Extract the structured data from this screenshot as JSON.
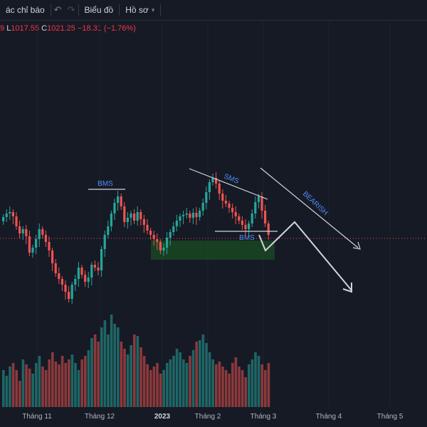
{
  "toolbar": {
    "indicators_label": "ác chỉ báo",
    "undo_icon": "undo-icon",
    "redo_icon": "redo-icon",
    "chart_label": "Biểu đồ",
    "profile_label": "Hồ sơ",
    "profile_icon": "chevron-down-icon"
  },
  "ohlc": {
    "open_tail": "9",
    "low_label": "L",
    "low_value": "1017.55",
    "close_label": "C",
    "close_value": "1021.25",
    "change": "−18.31 (−1.76%)"
  },
  "annotations": {
    "bms_left": "BMS",
    "sms": "SMS",
    "bms_right": "BMS",
    "bearish": "BEARISH"
  },
  "time_axis": [
    "Tháng 11",
    "Tháng 12",
    "2023",
    "Tháng 2",
    "Tháng 3",
    "Tháng 4",
    "Tháng 5"
  ],
  "colors": {
    "up": "#26a69a",
    "down": "#ef5350",
    "annotation": "#2962ff",
    "background": "#161a25",
    "zone": "#1b5e20"
  }
}
